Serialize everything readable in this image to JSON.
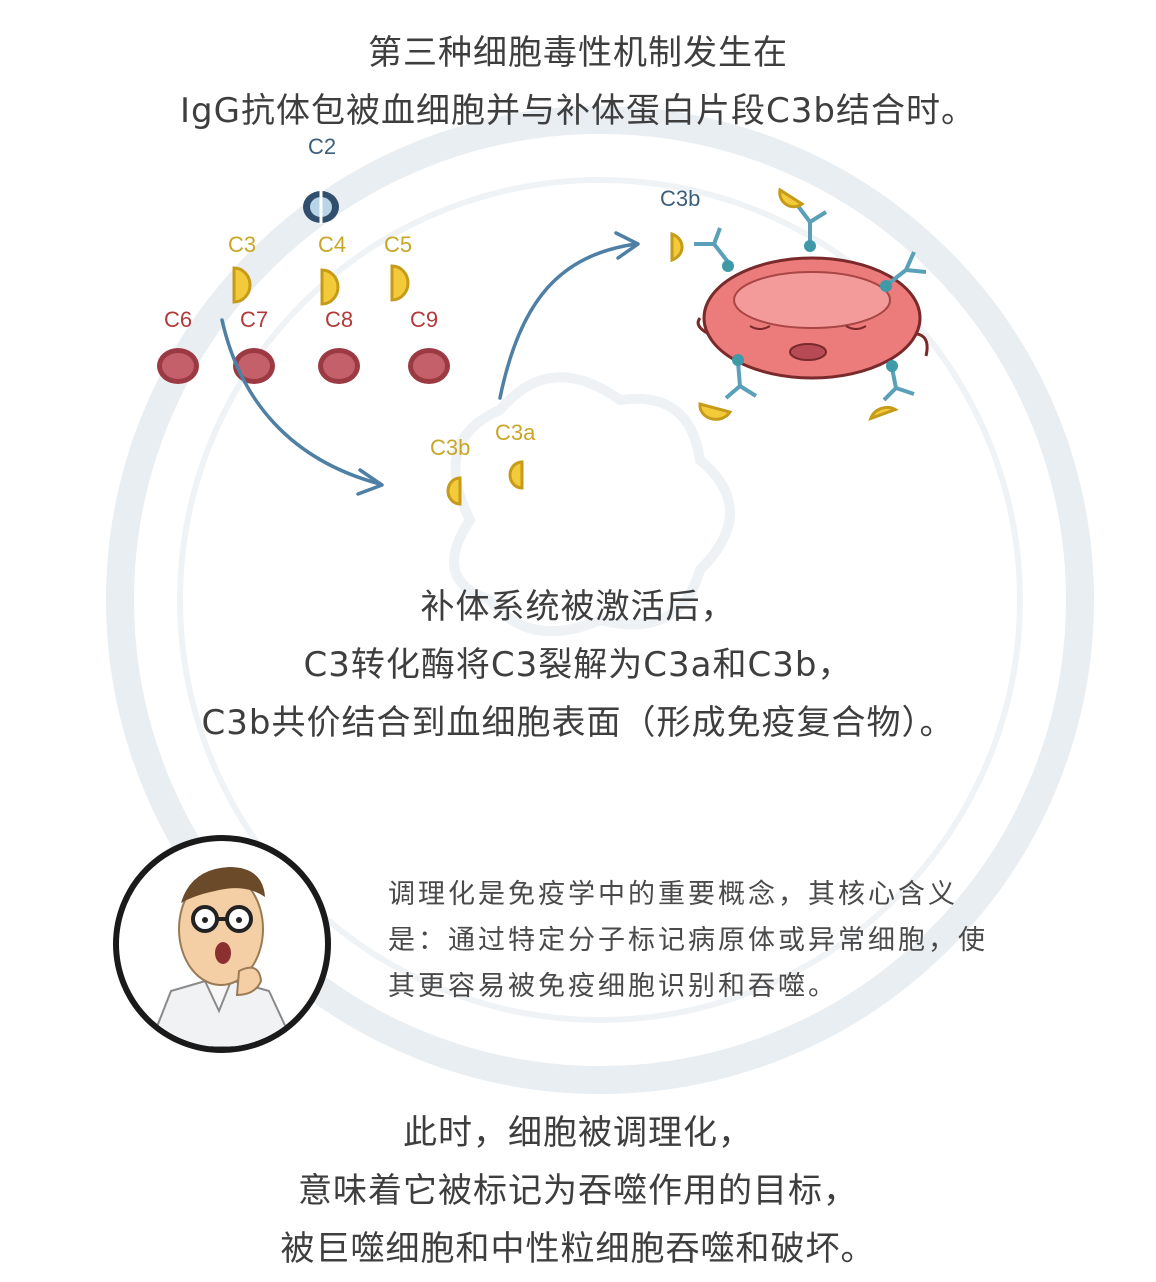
{
  "intro": {
    "line1": "第三种细胞毒性机制发生在",
    "line2": "IgG抗体包被血细胞并与补体蛋白片段C3b结合时。"
  },
  "diagram": {
    "labels": {
      "c2": "C2",
      "c3": "C3",
      "c4": "C4",
      "c5": "C5",
      "c6": "C6",
      "c7": "C7",
      "c8": "C8",
      "c9": "C9",
      "c3b_fragment": "C3b",
      "c3a_fragment": "C3a",
      "c3b_bound": "C3b"
    },
    "colors": {
      "fragment_yellow": "#f3cb3a",
      "red_component": "#b95862",
      "cell_body": "#ec7b7b",
      "arrow": "#4e7fa4",
      "antibody": "#7fb9cf"
    }
  },
  "middle": {
    "line1": "补体系统被激活后，",
    "line2": "C3转化酶将C3裂解为C3a和C3b，",
    "line3": "C3b共价结合到血细胞表面（形成免疫复合物）。"
  },
  "note": {
    "line1": "调理化是免疫学中的重要概念，其核心含义",
    "line2": "是：通过特定分子标记病原体或异常细胞，使",
    "line3": "其更容易被免疫细胞识别和吞噬。"
  },
  "conclusion": {
    "line1": "此时，细胞被调理化，",
    "line2": "意味着它被标记为吞噬作用的目标，",
    "line3": "被巨噬细胞和中性粒细胞吞噬和破坏。"
  }
}
